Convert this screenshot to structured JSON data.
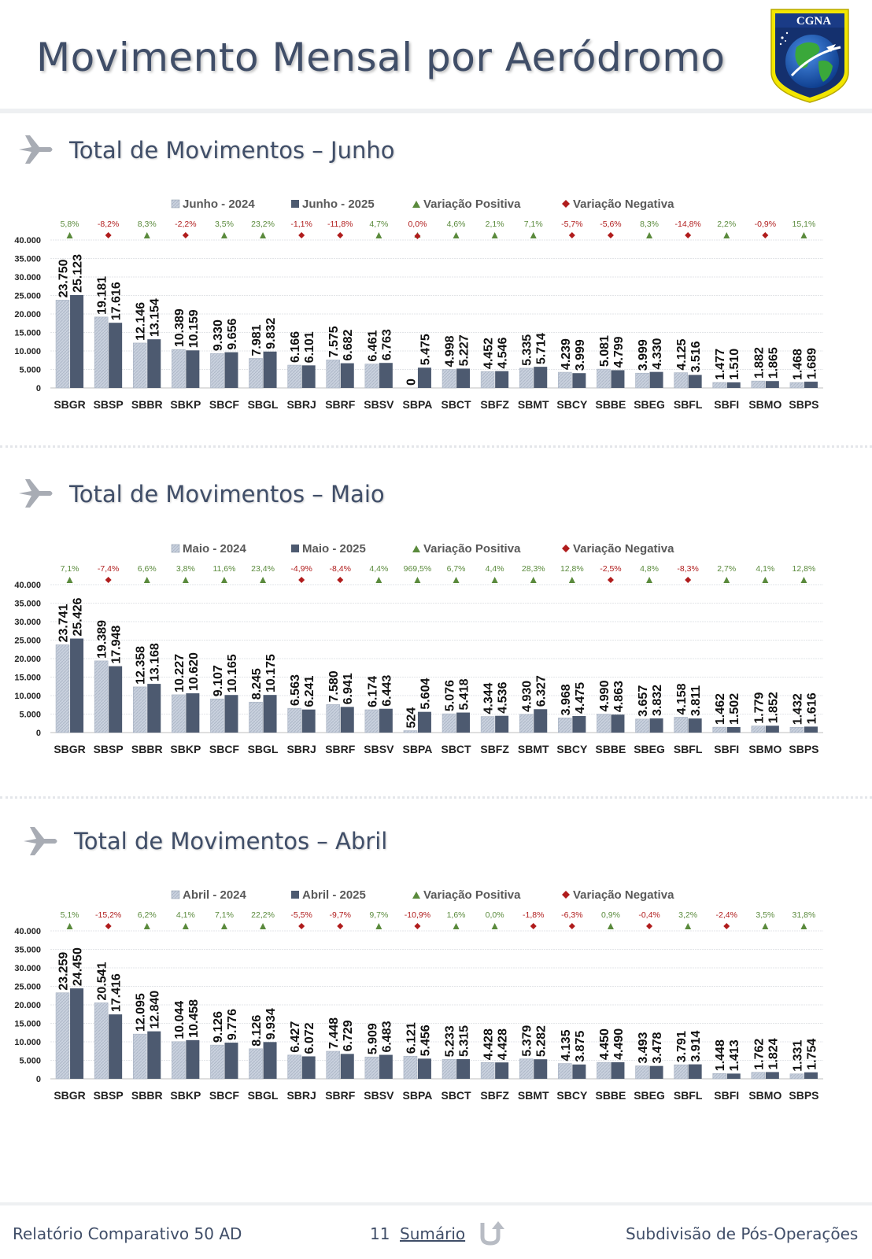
{
  "header": {
    "title": "Movimento Mensal por Aeródromo",
    "logo_text": "CGNA"
  },
  "sections": [
    {
      "title": "Total de Movimentos – Junho"
    },
    {
      "title": "Total de Movimentos – Maio"
    },
    {
      "title": "Total de Movimentos – Abril"
    }
  ],
  "footer": {
    "left": "Relatório Comparativo 50 AD",
    "page": "11",
    "link": "Sumário",
    "right": "Subdivisão de Pós-Operações"
  },
  "colors": {
    "series_2024": "#c9d1de",
    "series_2025": "#4d5a70",
    "positive": "#5a8a3c",
    "negative": "#b01c1c",
    "title": "#404e68"
  },
  "chart_data": [
    {
      "type": "bar",
      "categories": [
        "SBGR",
        "SBSP",
        "SBBR",
        "SBKP",
        "SBCF",
        "SBGL",
        "SBRJ",
        "SBRF",
        "SBSV",
        "SBPA",
        "SBCT",
        "SBFZ",
        "SBMT",
        "SBCY",
        "SBBE",
        "SBEG",
        "SBFL",
        "SBFI",
        "SBMO",
        "SBPS"
      ],
      "series": [
        {
          "name": "Junho - 2024",
          "values": [
            23750,
            19181,
            12146,
            10389,
            9330,
            7981,
            6166,
            7575,
            6461,
            0,
            4998,
            4452,
            5335,
            4239,
            5081,
            3999,
            4125,
            1477,
            1882,
            1468
          ]
        },
        {
          "name": "Junho - 2025",
          "values": [
            25123,
            17616,
            13154,
            10159,
            9656,
            9832,
            6101,
            6682,
            6763,
            5475,
            5227,
            4546,
            5714,
            3999,
            4799,
            4330,
            3516,
            1510,
            1865,
            1689
          ]
        }
      ],
      "value_labels_2024": [
        "23.750",
        "19.181",
        "12.146",
        "10.389",
        "9.330",
        "7.981",
        "6.166",
        "7.575",
        "6.461",
        "0",
        "4.998",
        "4.452",
        "5.335",
        "4.239",
        "5.081",
        "3.999",
        "4.125",
        "1.477",
        "1.882",
        "1.468"
      ],
      "value_labels_2025": [
        "25.123",
        "17.616",
        "13.154",
        "10.159",
        "9.656",
        "9.832",
        "6.101",
        "6.682",
        "6.763",
        "5.475",
        "5.227",
        "4.546",
        "5.714",
        "3.999",
        "4.799",
        "4.330",
        "3.516",
        "1.510",
        "1.865",
        "1.689"
      ],
      "variation": [
        "5,8%",
        "-8,2%",
        "8,3%",
        "-2,2%",
        "3,5%",
        "23,2%",
        "-1,1%",
        "-11,8%",
        "4,7%",
        "0,0%",
        "4,6%",
        "2,1%",
        "7,1%",
        "-5,7%",
        "-5,6%",
        "8,3%",
        "-14,8%",
        "2,2%",
        "-0,9%",
        "15,1%"
      ],
      "variation_sign": [
        "positive",
        "negative",
        "positive",
        "negative",
        "positive",
        "positive",
        "negative",
        "negative",
        "positive",
        "both",
        "positive",
        "positive",
        "positive",
        "negative",
        "negative",
        "positive",
        "negative",
        "positive",
        "negative",
        "positive"
      ],
      "legend": [
        "Junho - 2024",
        "Junho - 2025",
        "Variação Positiva",
        "Variação Negativa"
      ],
      "yticks": [
        "40.000",
        "35.000",
        "30.000",
        "25.000",
        "20.000",
        "15.000",
        "10.000",
        "5.000",
        "0"
      ],
      "ylim": [
        0,
        40000
      ],
      "grid": true,
      "legend_position": "top"
    },
    {
      "type": "bar",
      "categories": [
        "SBGR",
        "SBSP",
        "SBBR",
        "SBKP",
        "SBCF",
        "SBGL",
        "SBRJ",
        "SBRF",
        "SBSV",
        "SBPA",
        "SBCT",
        "SBFZ",
        "SBMT",
        "SBCY",
        "SBBE",
        "SBEG",
        "SBFL",
        "SBFI",
        "SBMO",
        "SBPS"
      ],
      "series": [
        {
          "name": "Maio - 2024",
          "values": [
            23741,
            19389,
            12358,
            10227,
            9107,
            8245,
            6563,
            7580,
            6174,
            524,
            5076,
            4344,
            4930,
            3968,
            4990,
            3657,
            4158,
            1462,
            1779,
            1432
          ]
        },
        {
          "name": "Maio - 2025",
          "values": [
            25426,
            17948,
            13168,
            10620,
            10165,
            10175,
            6241,
            6941,
            6443,
            5604,
            5418,
            4536,
            6327,
            4475,
            4863,
            3832,
            3811,
            1502,
            1852,
            1616
          ]
        }
      ],
      "value_labels_2024": [
        "23.741",
        "19.389",
        "12.358",
        "10.227",
        "9.107",
        "8.245",
        "6.563",
        "7.580",
        "6.174",
        "524",
        "5.076",
        "4.344",
        "4.930",
        "3.968",
        "4.990",
        "3.657",
        "4.158",
        "1.462",
        "1.779",
        "1.432"
      ],
      "value_labels_2025": [
        "25.426",
        "17.948",
        "13.168",
        "10.620",
        "10.165",
        "10.175",
        "6.241",
        "6.941",
        "6.443",
        "5.604",
        "5.418",
        "4.536",
        "6.327",
        "4.475",
        "4.863",
        "3.832",
        "3.811",
        "1.502",
        "1.852",
        "1.616"
      ],
      "variation": [
        "7,1%",
        "-7,4%",
        "6,6%",
        "3,8%",
        "11,6%",
        "23,4%",
        "-4,9%",
        "-8,4%",
        "4,4%",
        "969,5%",
        "6,7%",
        "4,4%",
        "28,3%",
        "12,8%",
        "-2,5%",
        "4,8%",
        "-8,3%",
        "2,7%",
        "4,1%",
        "12,8%"
      ],
      "variation_sign": [
        "positive",
        "negative",
        "positive",
        "positive",
        "positive",
        "positive",
        "negative",
        "negative",
        "positive",
        "positive",
        "positive",
        "positive",
        "positive",
        "positive",
        "negative",
        "positive",
        "negative",
        "positive",
        "positive",
        "positive"
      ],
      "legend": [
        "Maio - 2024",
        "Maio - 2025",
        "Variação Positiva",
        "Variação Negativa"
      ],
      "yticks": [
        "40.000",
        "35.000",
        "30.000",
        "25.000",
        "20.000",
        "15.000",
        "10.000",
        "5.000",
        "0"
      ],
      "ylim": [
        0,
        40000
      ],
      "grid": true,
      "legend_position": "top"
    },
    {
      "type": "bar",
      "categories": [
        "SBGR",
        "SBSP",
        "SBBR",
        "SBKP",
        "SBCF",
        "SBGL",
        "SBRJ",
        "SBRF",
        "SBSV",
        "SBPA",
        "SBCT",
        "SBFZ",
        "SBMT",
        "SBCY",
        "SBBE",
        "SBEG",
        "SBFL",
        "SBFI",
        "SBMO",
        "SBPS"
      ],
      "series": [
        {
          "name": "Abril - 2024",
          "values": [
            23259,
            20541,
            12095,
            10044,
            9126,
            8126,
            6427,
            7448,
            5909,
            6121,
            5233,
            4428,
            5379,
            4135,
            4450,
            3493,
            3791,
            1448,
            1762,
            1331
          ]
        },
        {
          "name": "Abril - 2025",
          "values": [
            24450,
            17416,
            12840,
            10458,
            9776,
            9934,
            6072,
            6729,
            6483,
            5456,
            5315,
            4428,
            5282,
            3875,
            4490,
            3478,
            3914,
            1413,
            1824,
            1754
          ]
        }
      ],
      "value_labels_2024": [
        "23.259",
        "20.541",
        "12.095",
        "10.044",
        "9.126",
        "8.126",
        "6.427",
        "7.448",
        "5.909",
        "6.121",
        "5.233",
        "4.428",
        "5.379",
        "4.135",
        "4.450",
        "3.493",
        "3.791",
        "1.448",
        "1.762",
        "1.331"
      ],
      "value_labels_2025": [
        "24.450",
        "17.416",
        "12.840",
        "10.458",
        "9.776",
        "9.934",
        "6.072",
        "6.729",
        "6.483",
        "5.456",
        "5.315",
        "4.428",
        "5.282",
        "3.875",
        "4.490",
        "3.478",
        "3.914",
        "1.413",
        "1.824",
        "1.754"
      ],
      "variation": [
        "5,1%",
        "-15,2%",
        "6,2%",
        "4,1%",
        "7,1%",
        "22,2%",
        "-5,5%",
        "-9,7%",
        "9,7%",
        "-10,9%",
        "1,6%",
        "0,0%",
        "-1,8%",
        "-6,3%",
        "0,9%",
        "-0,4%",
        "3,2%",
        "-2,4%",
        "3,5%",
        "31,8%"
      ],
      "variation_sign": [
        "positive",
        "negative",
        "positive",
        "positive",
        "positive",
        "positive",
        "negative",
        "negative",
        "positive",
        "negative",
        "positive",
        "positive",
        "negative",
        "negative",
        "positive",
        "negative",
        "positive",
        "negative",
        "positive",
        "positive"
      ],
      "legend": [
        "Abril - 2024",
        "Abril - 2025",
        "Variação Positiva",
        "Variação Negativa"
      ],
      "yticks": [
        "40.000",
        "35.000",
        "30.000",
        "25.000",
        "20.000",
        "15.000",
        "10.000",
        "5.000",
        "0"
      ],
      "ylim": [
        0,
        40000
      ],
      "grid": true,
      "legend_position": "top"
    }
  ]
}
